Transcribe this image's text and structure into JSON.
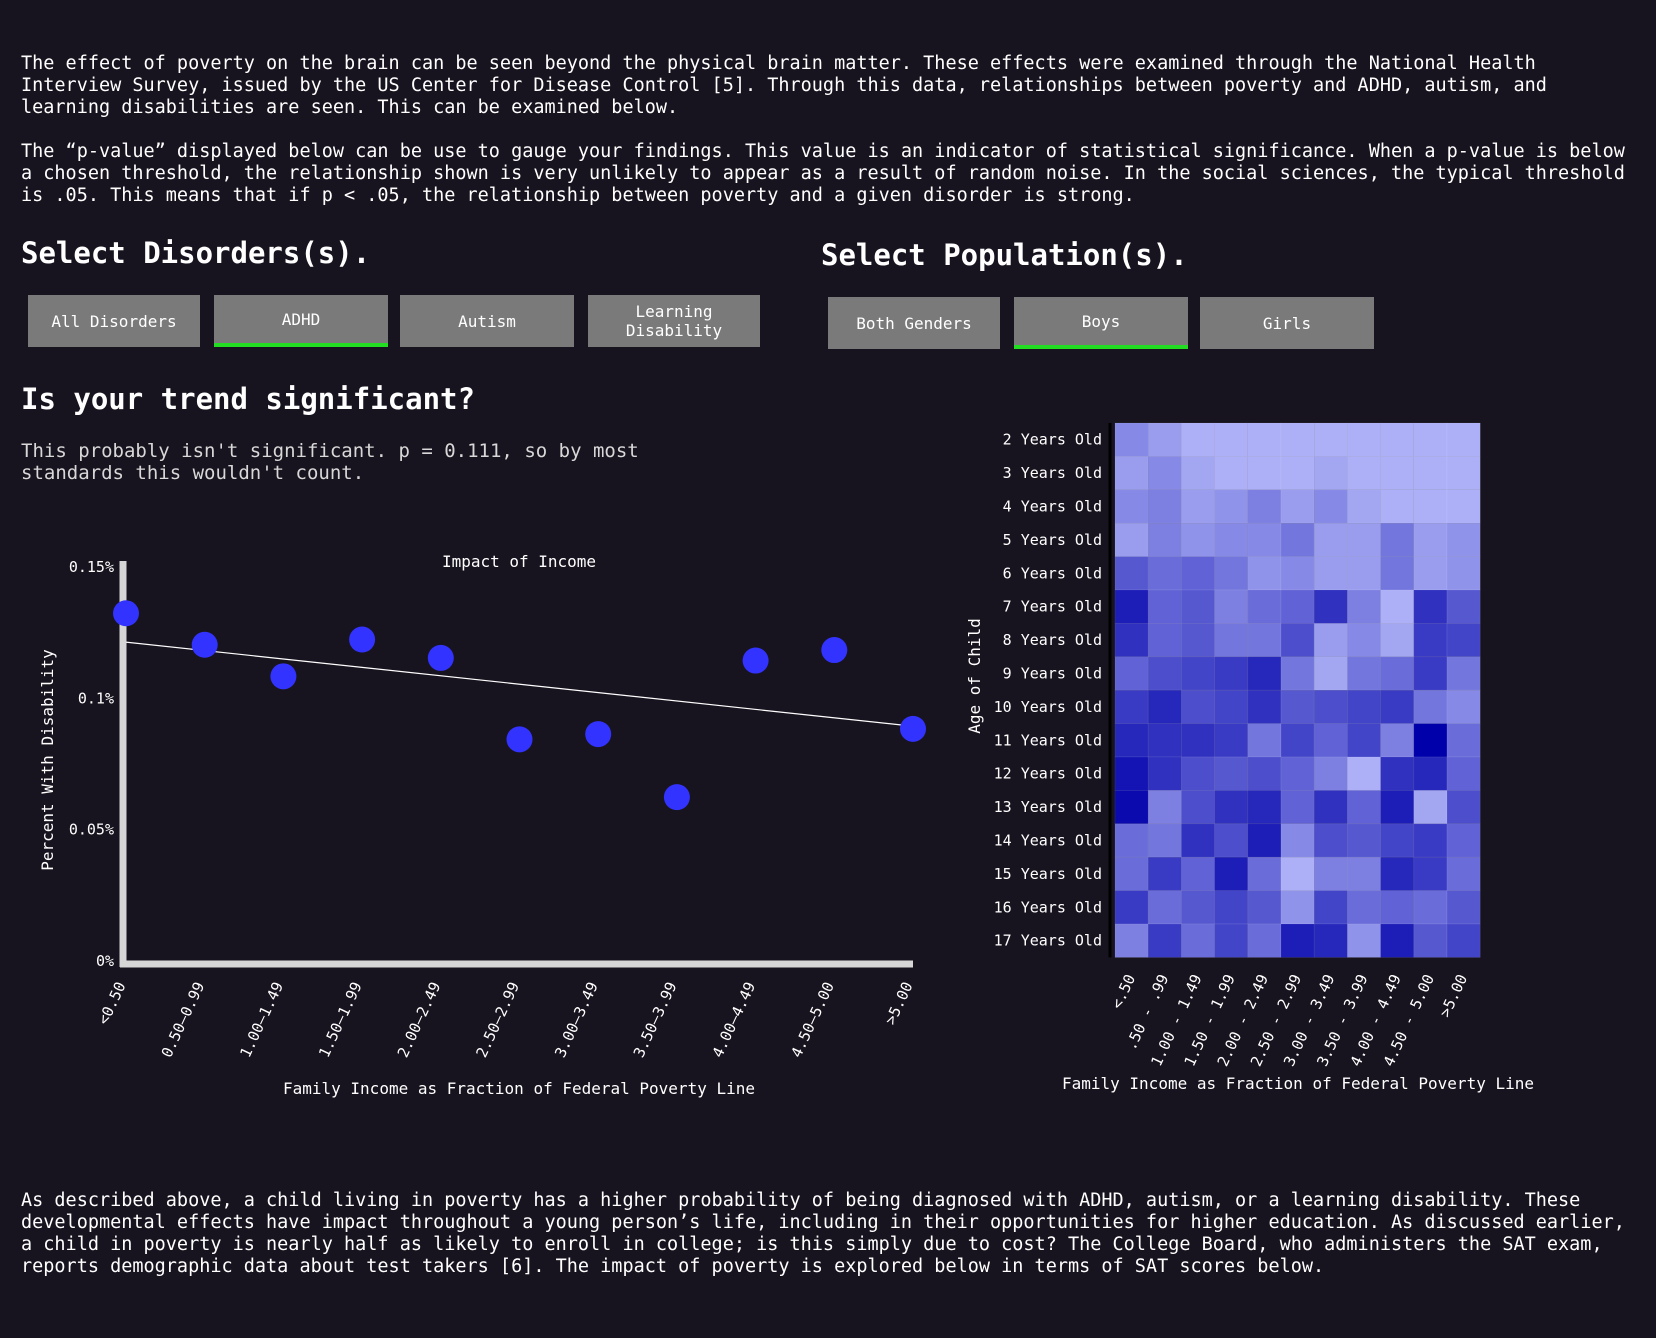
{
  "intro": {
    "para1": "The effect of poverty on the brain can be seen beyond the physical brain matter. These effects were examined through the National Health Interview Survey, issued by the US Center for Disease Control [5]. Through this data, relationships between poverty and ADHD, autism, and learning disabilities are seen. This can be examined below.",
    "para2": "The “p-value” displayed below can be use to gauge your findings. This value is an indicator of statistical significance. When a p-value is below a chosen threshold, the relationship shown is very unlikely to appear as a result of random noise. In the social sciences, the typical threshold is .05. This means that if p < .05, the relationship between poverty and a given disorder is strong."
  },
  "disorders": {
    "heading": "Select Disorders(s).",
    "buttons": [
      {
        "label": "All Disorders",
        "active": false
      },
      {
        "label": "ADHD",
        "active": true
      },
      {
        "label": "Autism",
        "active": false
      },
      {
        "label": "Learning Disability",
        "active": false
      }
    ]
  },
  "population": {
    "heading": "Select Population(s).",
    "buttons": [
      {
        "label": "Both Genders",
        "active": false
      },
      {
        "label": "Boys",
        "active": true
      },
      {
        "label": "Girls",
        "active": false
      }
    ]
  },
  "significance": {
    "heading": "Is your trend significant?",
    "text": "This probably isn't significant. p = 0.111, so by most standards this wouldn't count."
  },
  "outro": {
    "para": "As described above, a child living in poverty has a higher probability of being diagnosed with ADHD, autism, or a learning disability. These developmental effects have impact throughout a young person’s life, including in their opportunities for higher education. As discussed earlier, a child in poverty is nearly half as likely to enroll in college; is this simply due to cost? The College Board, who administers the SAT exam, reports demographic data about test takers [6]. The impact of poverty is explored below in terms of SAT scores below."
  },
  "colors": {
    "background": "#18141f",
    "accent_active": "#22dd22",
    "button": "#7a7a7a",
    "point": "#3333ff"
  },
  "chart_data": [
    {
      "type": "scatter",
      "title": "Impact of Income",
      "xlabel": "Family Income as Fraction of Federal Poverty Line",
      "ylabel": "Percent With Disability",
      "categories": [
        "<0.50",
        "0.50–0.99",
        "1.00–1.49",
        "1.50–1.99",
        "2.00–2.49",
        "2.50–2.99",
        "3.00–3.49",
        "3.50–3.99",
        "4.00–4.49",
        "4.50–5.00",
        ">5.00"
      ],
      "values": [
        0.132,
        0.12,
        0.108,
        0.122,
        0.115,
        0.084,
        0.086,
        0.062,
        0.114,
        0.118,
        0.088
      ],
      "trendline": {
        "start": 0.121,
        "end": 0.089
      },
      "yticks": [
        {
          "value": 0.15,
          "label": "0.15%"
        },
        {
          "value": 0.1,
          "label": "0.1%"
        },
        {
          "value": 0.05,
          "label": "0.05%"
        },
        {
          "value": 0,
          "label": "0%"
        }
      ],
      "ylim": [
        0,
        0.15
      ]
    },
    {
      "type": "heatmap",
      "xlabel": "Family Income as Fraction of Federal Poverty Line",
      "ylabel": "Age of Child",
      "x_categories": [
        "<.50",
        ".50 - .99",
        "1.00 - 1.49",
        "1.50 - 1.99",
        "2.00 - 2.49",
        "2.50 - 2.99",
        "3.00 - 3.49",
        "3.50 - 3.99",
        "4.00 - 4.49",
        "4.50 - 5.00",
        ">5.00"
      ],
      "y_categories": [
        "2 Years Old",
        "3 Years Old",
        "4 Years Old",
        "5 Years Old",
        "6 Years Old",
        "7 Years Old",
        "8 Years Old",
        "9 Years Old",
        "10 Years Old",
        "11 Years Old",
        "12 Years Old",
        "13 Years Old",
        "14 Years Old",
        "15 Years Old",
        "16 Years Old",
        "17 Years Old"
      ],
      "values": [
        [
          0.3,
          0.2,
          0.1,
          0.1,
          0.1,
          0.1,
          0.1,
          0.1,
          0.1,
          0.1,
          0.1
        ],
        [
          0.2,
          0.3,
          0.15,
          0.1,
          0.1,
          0.1,
          0.15,
          0.1,
          0.1,
          0.1,
          0.1
        ],
        [
          0.3,
          0.35,
          0.2,
          0.25,
          0.35,
          0.2,
          0.3,
          0.15,
          0.1,
          0.1,
          0.1
        ],
        [
          0.2,
          0.35,
          0.25,
          0.3,
          0.3,
          0.4,
          0.2,
          0.2,
          0.4,
          0.2,
          0.25
        ],
        [
          0.55,
          0.45,
          0.5,
          0.4,
          0.25,
          0.3,
          0.2,
          0.2,
          0.4,
          0.2,
          0.25
        ],
        [
          0.85,
          0.5,
          0.55,
          0.35,
          0.45,
          0.5,
          0.75,
          0.35,
          0.1,
          0.75,
          0.55
        ],
        [
          0.75,
          0.5,
          0.55,
          0.4,
          0.4,
          0.6,
          0.2,
          0.3,
          0.15,
          0.7,
          0.65
        ],
        [
          0.5,
          0.6,
          0.65,
          0.7,
          0.8,
          0.4,
          0.15,
          0.4,
          0.45,
          0.7,
          0.4
        ],
        [
          0.7,
          0.8,
          0.6,
          0.65,
          0.75,
          0.55,
          0.6,
          0.65,
          0.7,
          0.4,
          0.3
        ],
        [
          0.8,
          0.75,
          0.75,
          0.7,
          0.4,
          0.65,
          0.5,
          0.65,
          0.35,
          1.0,
          0.45
        ],
        [
          0.9,
          0.75,
          0.6,
          0.55,
          0.6,
          0.5,
          0.35,
          0.1,
          0.75,
          0.8,
          0.5
        ],
        [
          0.95,
          0.35,
          0.6,
          0.75,
          0.8,
          0.5,
          0.75,
          0.5,
          0.85,
          0.15,
          0.6
        ],
        [
          0.45,
          0.4,
          0.75,
          0.6,
          0.85,
          0.3,
          0.6,
          0.55,
          0.65,
          0.7,
          0.5
        ],
        [
          0.45,
          0.7,
          0.5,
          0.85,
          0.45,
          0.1,
          0.35,
          0.35,
          0.8,
          0.7,
          0.45
        ],
        [
          0.7,
          0.45,
          0.55,
          0.65,
          0.55,
          0.25,
          0.65,
          0.45,
          0.5,
          0.45,
          0.55
        ],
        [
          0.35,
          0.7,
          0.45,
          0.65,
          0.45,
          0.85,
          0.8,
          0.25,
          0.85,
          0.55,
          0.65
        ]
      ],
      "color_low": "#c0c4ff",
      "color_high": "#0000aa"
    }
  ]
}
